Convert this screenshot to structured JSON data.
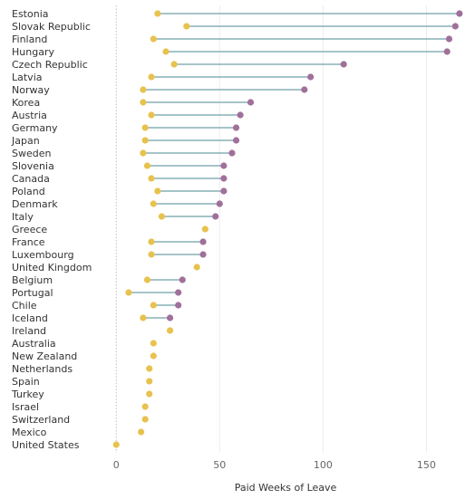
{
  "chart_data": {
    "type": "dumbbell",
    "categories": [
      "Estonia",
      "Slovak Republic",
      "Finland",
      "Hungary",
      "Czech Republic",
      "Latvia",
      "Norway",
      "Korea",
      "Austria",
      "Germany",
      "Japan",
      "Sweden",
      "Slovenia",
      "Canada",
      "Poland",
      "Denmark",
      "Italy",
      "Greece",
      "France",
      "Luxembourg",
      "United Kingdom",
      "Belgium",
      "Portugal",
      "Chile",
      "Iceland",
      "Ireland",
      "Australia",
      "New Zealand",
      "Netherlands",
      "Spain",
      "Turkey",
      "Israel",
      "Switzerland",
      "Mexico",
      "United States"
    ],
    "series": [
      {
        "values": [
          20,
          34,
          18,
          24,
          28,
          17,
          13,
          13,
          17,
          14,
          14,
          13,
          15,
          17,
          20,
          18,
          22,
          43,
          17,
          17,
          39,
          15,
          6,
          18,
          13,
          26,
          18,
          18,
          16,
          16,
          16,
          14,
          14,
          12,
          0
        ]
      },
      {
        "values": [
          166,
          164,
          161,
          160,
          110,
          94,
          91,
          65,
          60,
          58,
          58,
          56,
          52,
          52,
          52,
          50,
          48,
          null,
          42,
          42,
          null,
          32,
          30,
          30,
          26,
          null,
          null,
          null,
          null,
          null,
          null,
          null,
          null,
          null,
          null
        ]
      }
    ],
    "xlabel": "Paid Weeks of Leave",
    "xlim": [
      -8,
      170
    ],
    "xticks": [
      0,
      50,
      100,
      150
    ],
    "colors": {
      "dot_low": "#e8c24e",
      "dot_high": "#a0709b",
      "line": "#6fa1a8",
      "grid": "#ececec",
      "zero_line": "#bdbdbd"
    }
  }
}
